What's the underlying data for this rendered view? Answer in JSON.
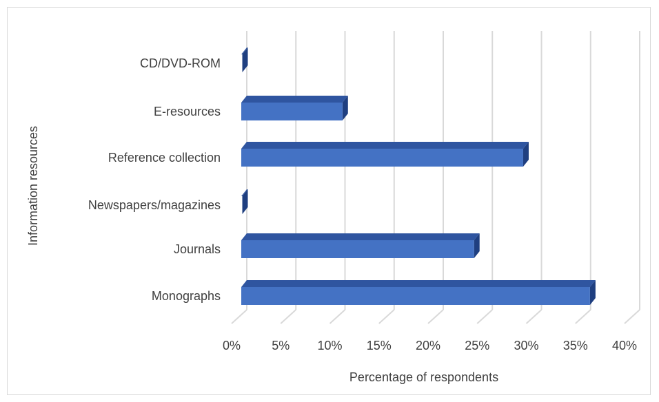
{
  "chart_data": {
    "type": "bar",
    "orientation": "horizontal",
    "style": "3d",
    "title": "",
    "xlabel": "Percentage of respondents",
    "ylabel": "Information resources",
    "categories": [
      "Monographs",
      "Journals",
      "Newspapers/magazines",
      "Reference collection",
      "E-resources",
      "CD/DVD-ROM"
    ],
    "values": [
      35.5,
      23.7,
      0,
      28.7,
      10.3,
      0
    ],
    "xlim": [
      0,
      40
    ],
    "xticks": [
      "0%",
      "5%",
      "10%",
      "15%",
      "20%",
      "25%",
      "30%",
      "35%",
      "40%"
    ],
    "grid": true,
    "legend": "none",
    "colors": {
      "bar_front": "#4472c4",
      "bar_top": "#2f55a0",
      "bar_side": "#1f3f80",
      "grid": "#d9d9d9"
    }
  }
}
